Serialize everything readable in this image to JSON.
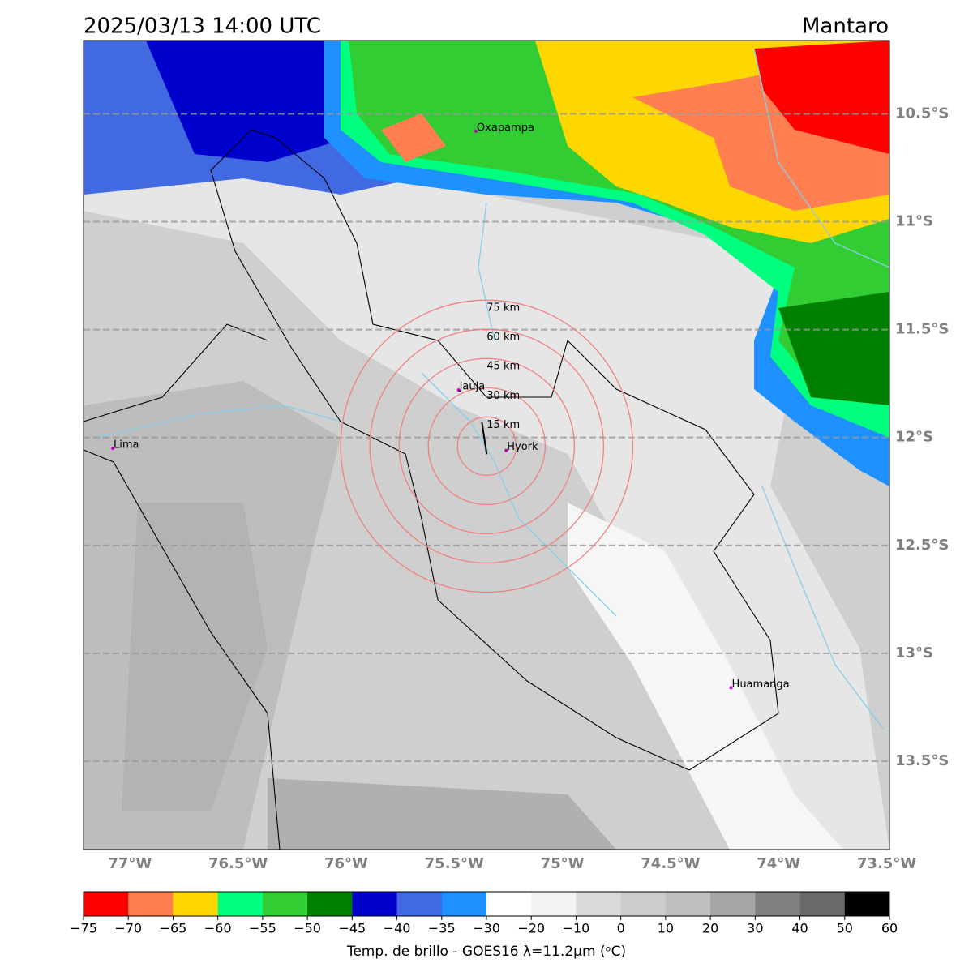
{
  "header": {
    "title": "2025/03/13 14:00 UTC",
    "region": "Mantaro"
  },
  "map": {
    "lon_range": [
      -77.215,
      -73.487
    ],
    "lat_range": [
      -10.16,
      -13.91
    ],
    "lon_ticks": [
      {
        "value": -77,
        "label": "77°W"
      },
      {
        "value": -76.5,
        "label": "76.5°W"
      },
      {
        "value": -76,
        "label": "76°W"
      },
      {
        "value": -75.5,
        "label": "75.5°W"
      },
      {
        "value": -75,
        "label": "75°W"
      },
      {
        "value": -74.5,
        "label": "74.5°W"
      },
      {
        "value": -74,
        "label": "74°W"
      },
      {
        "value": -73.5,
        "label": "73.5°W"
      }
    ],
    "lat_ticks": [
      {
        "value": -10.5,
        "label": "10.5°S"
      },
      {
        "value": -11,
        "label": "11°S"
      },
      {
        "value": -11.5,
        "label": "11.5°S"
      },
      {
        "value": -12,
        "label": "12°S"
      },
      {
        "value": -12.5,
        "label": "12.5°S"
      },
      {
        "value": -13,
        "label": "13°S"
      },
      {
        "value": -13.5,
        "label": "13.5°S"
      }
    ],
    "cities": [
      {
        "name": "Oxapampa",
        "lon": -75.4,
        "lat": -10.58
      },
      {
        "name": "Jauja",
        "lon": -75.48,
        "lat": -11.78
      },
      {
        "name": "Hyork",
        "lon": -75.26,
        "lat": -12.06
      },
      {
        "name": "Lima",
        "lon": -77.08,
        "lat": -12.05
      },
      {
        "name": "Huamanga",
        "lon": -74.22,
        "lat": -13.16
      }
    ],
    "radar": {
      "lon": -75.35,
      "lat": -12.04
    },
    "rings": [
      {
        "radius_km": 15,
        "label": "15 km"
      },
      {
        "radius_km": 30,
        "label": "30 km"
      },
      {
        "radius_km": 45,
        "label": "45 km"
      },
      {
        "radius_km": 60,
        "label": "60 km"
      },
      {
        "radius_km": 75,
        "label": "75 km"
      }
    ]
  },
  "colorbar": {
    "ticks": [
      "−75",
      "−70",
      "−65",
      "−60",
      "−55",
      "−50",
      "−45",
      "−40",
      "−35",
      "−30",
      "−20",
      "−10",
      "0",
      "10",
      "20",
      "30",
      "40",
      "50",
      "60"
    ],
    "colors": [
      "#ff0000",
      "#ff7f50",
      "#ffd700",
      "#00ff7f",
      "#32cd32",
      "#008000",
      "#0000cd",
      "#4169e1",
      "#1e90ff",
      "#ffffff",
      "#f2f2f2",
      "#d9d9d9",
      "#cccccc",
      "#bfbfbf",
      "#a6a6a6",
      "#808080",
      "#696969",
      "#000000"
    ],
    "label": "Temp. de brillo - GOES16 λ=11.2μm (ᵒC)"
  }
}
